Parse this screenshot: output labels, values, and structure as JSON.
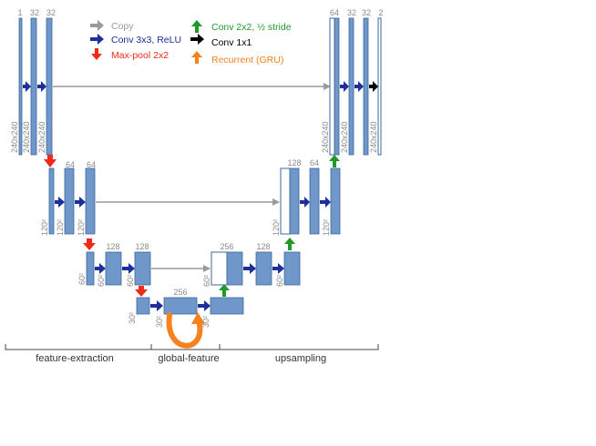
{
  "colors": {
    "block_fill": "#6f97c9",
    "block_stroke": "#3c6a9e",
    "copy": "#9a9a9a",
    "conv": "#1c2f9a",
    "maxpool": "#ee2a1a",
    "upconv": "#1f9a2a",
    "conv1x1": "#000000",
    "recurrent": "#f5821f",
    "bracket": "#444444"
  },
  "legend": [
    {
      "id": "copy",
      "label": "Copy",
      "color": "#9a9a9a",
      "icon": "arrow-right-icon"
    },
    {
      "id": "conv",
      "label": "Conv 3x3, ReLU",
      "color": "#1c2f9a",
      "icon": "arrow-right-icon"
    },
    {
      "id": "maxpool",
      "label": "Max-pool 2x2",
      "color": "#ee2a1a",
      "icon": "arrow-down-icon"
    },
    {
      "id": "upconv",
      "label": "Conv 2x2, ½ stride",
      "color": "#1f9a2a",
      "icon": "arrow-up-icon"
    },
    {
      "id": "conv1x1",
      "label": "Conv 1x1",
      "color": "#000000",
      "icon": "arrow-right-icon"
    },
    {
      "id": "recurrent",
      "label": "Recurrent (GRU)",
      "color": "#f5821f",
      "icon": "arrow-up-icon"
    }
  ],
  "channels": {
    "l1_in": "1",
    "l1_a": "32",
    "l1_b": "32",
    "l2_a": "64",
    "l2_b": "64",
    "l3_a": "128",
    "l3_b": "128",
    "l4_gru": "256",
    "r3_cat": "256",
    "r3_a": "128",
    "r2_cat": "128",
    "r2_a": "64",
    "r1_cat": "64",
    "r1_a": "32",
    "r1_b": "32",
    "r1_out": "2"
  },
  "dims": {
    "l1_a": "240x240",
    "l1_b": "240x240",
    "l1_c": "240x240",
    "l2_a": "120²",
    "l2_b": "120²",
    "l3_a": "60²",
    "l3_b": "60²",
    "l3_c": "60²",
    "l4_a": "30²",
    "l4_b": "30²",
    "l4_c": "30²",
    "r3_a": "60²",
    "r3_b": "60²",
    "r2_a": "120²",
    "r2_b": "120²",
    "r1_a": "240x240",
    "r1_b": "240x240",
    "r1_c": "240x240"
  },
  "sections": {
    "feature_extraction": "feature-extraction",
    "global_feature": "global-feature",
    "upsampling": "upsampling"
  }
}
